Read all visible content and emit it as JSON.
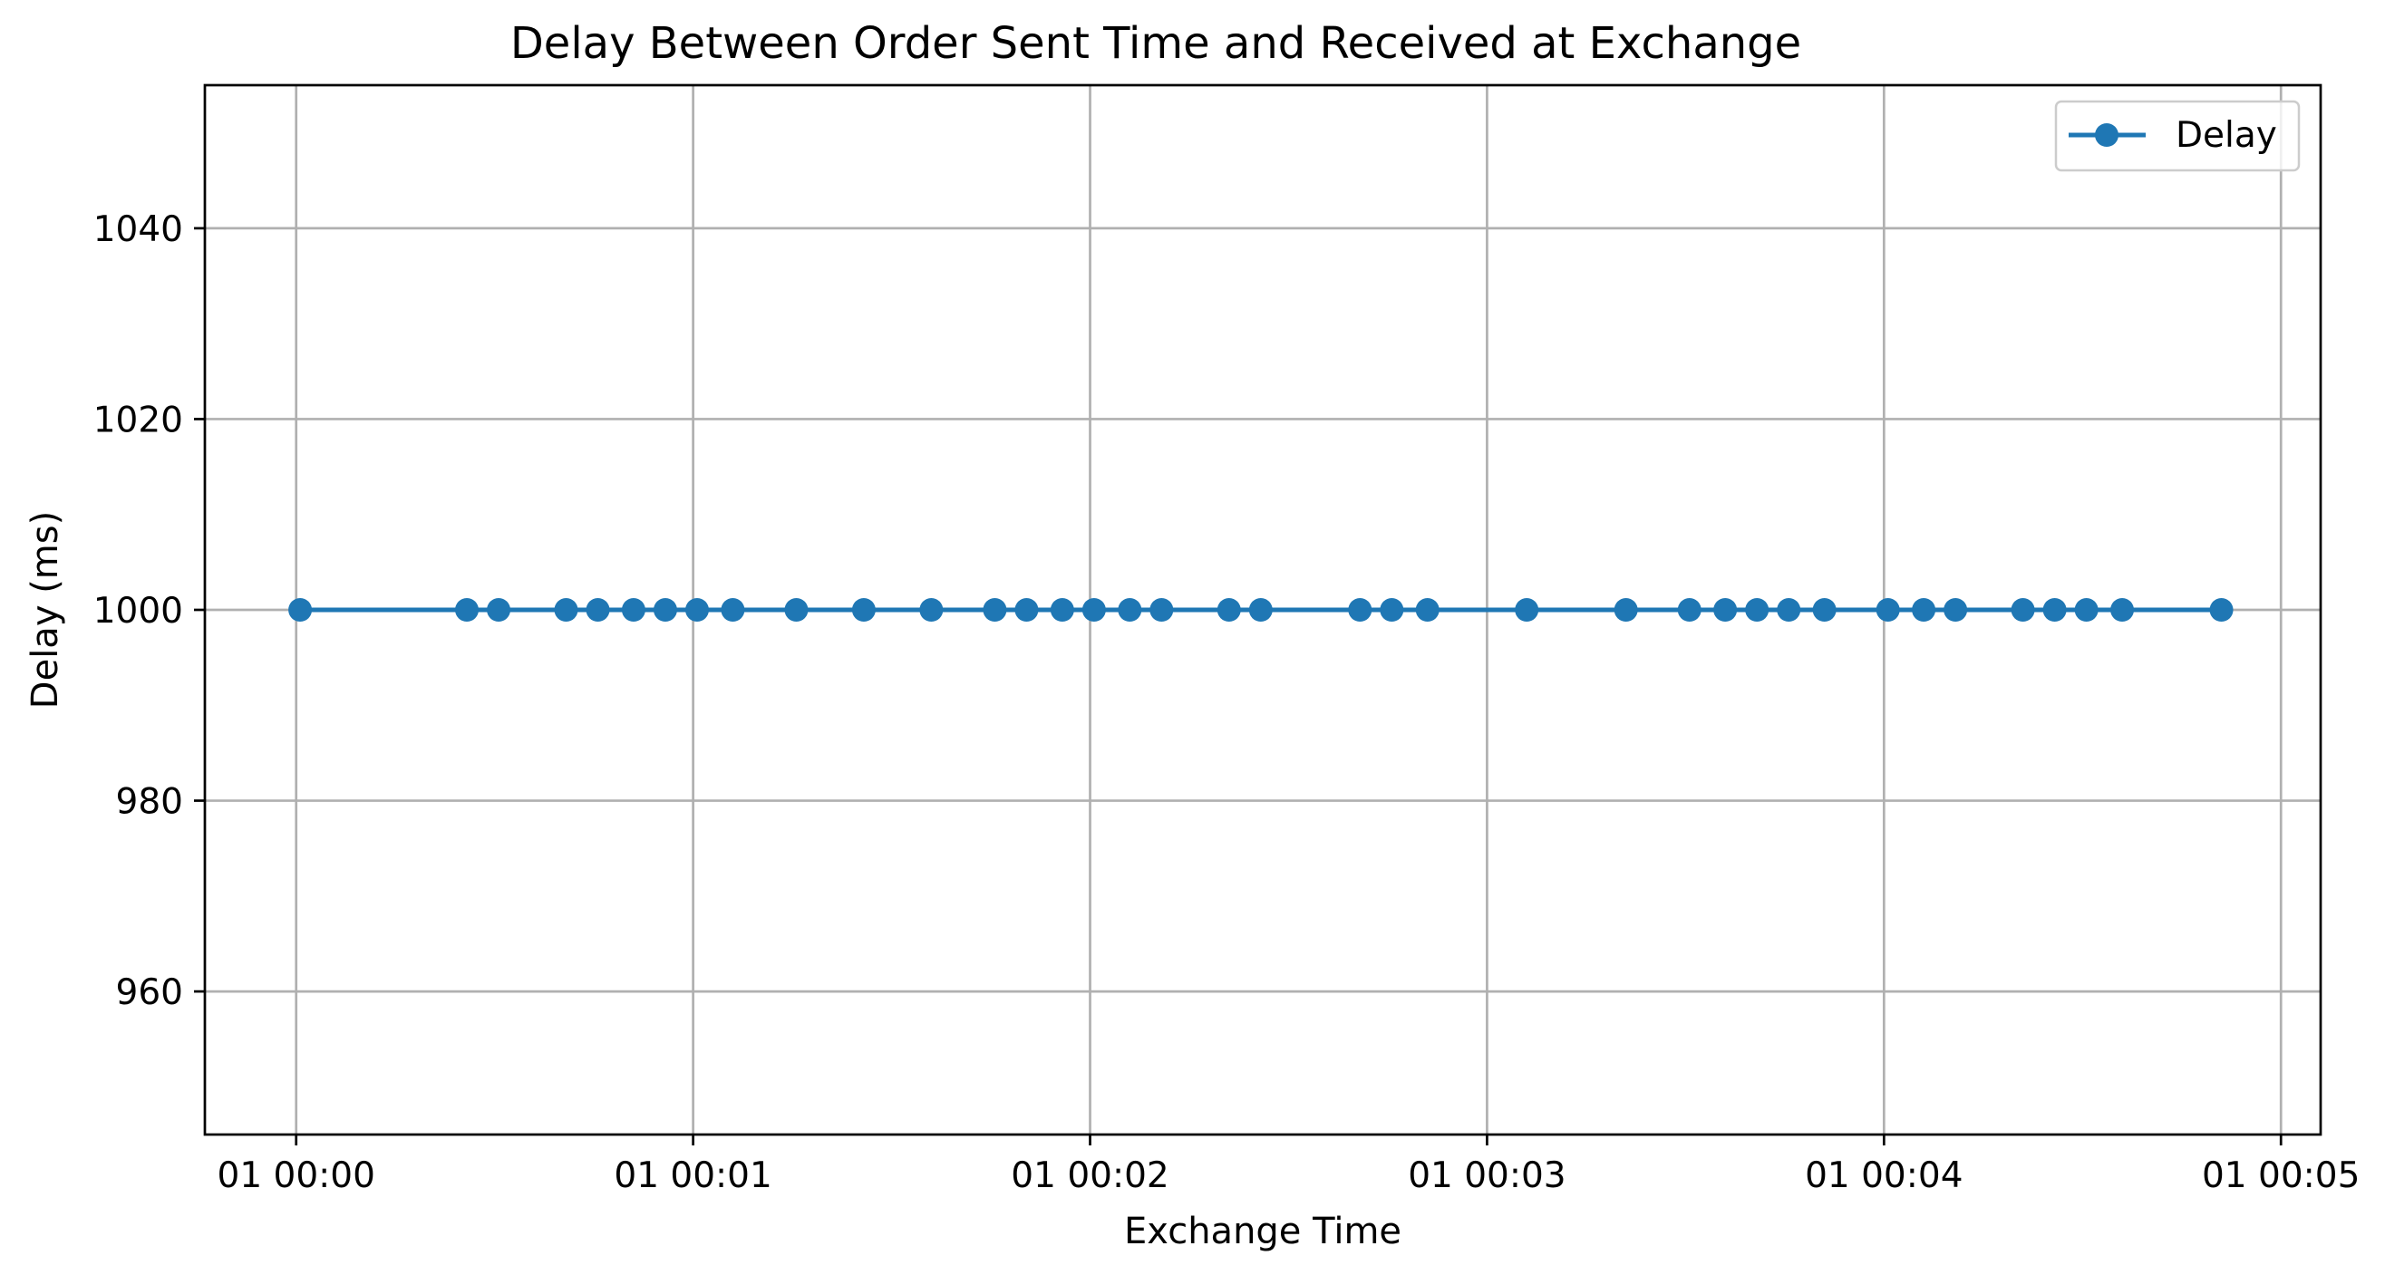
{
  "chart_data": {
    "type": "line",
    "title": "Delay Between Order Sent Time and Received at Exchange",
    "xlabel": "Exchange Time",
    "ylabel": "Delay (ms)",
    "ylim": [
      945,
      1055
    ],
    "xlim_seconds": [
      -0.23,
      5.1
    ],
    "x_ticks": [
      {
        "value": 0,
        "label": "01 00:00"
      },
      {
        "value": 1,
        "label": "01 00:01"
      },
      {
        "value": 2,
        "label": "01 00:02"
      },
      {
        "value": 3,
        "label": "01 00:03"
      },
      {
        "value": 4,
        "label": "01 00:04"
      },
      {
        "value": 5,
        "label": "01 00:05"
      }
    ],
    "y_ticks": [
      {
        "value": 960,
        "label": "960"
      },
      {
        "value": 980,
        "label": "980"
      },
      {
        "value": 1000,
        "label": "1000"
      },
      {
        "value": 1020,
        "label": "1020"
      },
      {
        "value": 1040,
        "label": "1040"
      }
    ],
    "grid": true,
    "legend": {
      "position": "top-right"
    },
    "series": [
      {
        "name": "Delay",
        "color": "#1f77b4",
        "marker": "circle",
        "x_seconds": [
          0.01,
          0.43,
          0.51,
          0.68,
          0.76,
          0.85,
          0.93,
          1.01,
          1.1,
          1.26,
          1.43,
          1.6,
          1.76,
          1.84,
          1.93,
          2.01,
          2.1,
          2.18,
          2.35,
          2.43,
          2.68,
          2.76,
          2.85,
          3.1,
          3.35,
          3.51,
          3.6,
          3.68,
          3.76,
          3.85,
          4.01,
          4.1,
          4.18,
          4.35,
          4.43,
          4.51,
          4.6,
          4.85
        ],
        "values": [
          1000,
          1000,
          1000,
          1000,
          1000,
          1000,
          1000,
          1000,
          1000,
          1000,
          1000,
          1000,
          1000,
          1000,
          1000,
          1000,
          1000,
          1000,
          1000,
          1000,
          1000,
          1000,
          1000,
          1000,
          1000,
          1000,
          1000,
          1000,
          1000,
          1000,
          1000,
          1000,
          1000,
          1000,
          1000,
          1000,
          1000,
          1000
        ]
      }
    ]
  }
}
